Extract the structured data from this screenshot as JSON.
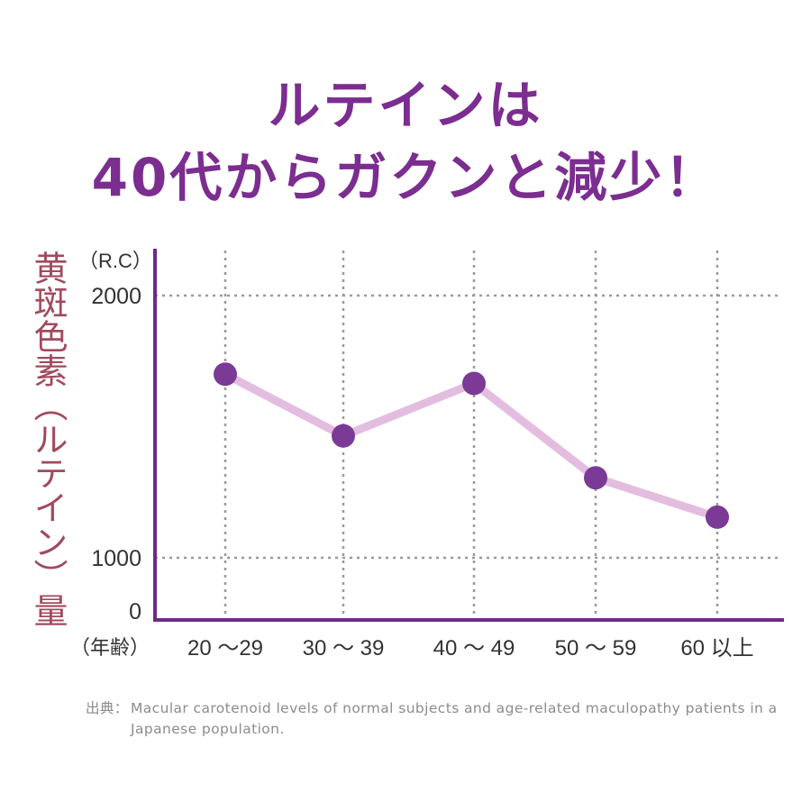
{
  "title_lines": [
    "ルテインは",
    "40代からガクンと減少！"
  ],
  "source": {
    "label": "出典：",
    "text": "Macular carotenoid levels of normal subjects and age-related maculopathy patients in a Japanese population."
  },
  "colors": {
    "title": "#7b2d90",
    "ylabel": "#a14a5e",
    "axis": "#6e2a87",
    "line": "#e3bde0",
    "marker": "#7a3a96",
    "grid": "#9a9a9a"
  },
  "chart_data": {
    "type": "line",
    "ylabel": "黄斑色素（ルテイン）量",
    "yunit": "（R.C）",
    "xunit": "（年齢）",
    "categories": [
      "20 ～29",
      "30 ～ 39",
      "40 ～ 49",
      "50 ～ 59",
      "60 以上"
    ],
    "values": [
      1700,
      1465,
      1665,
      1305,
      1155
    ],
    "yticks": [
      "2000",
      "1000",
      "0"
    ],
    "ylim": [
      0,
      2000
    ],
    "axis_break": "between 0 and 1000",
    "grid": true
  }
}
